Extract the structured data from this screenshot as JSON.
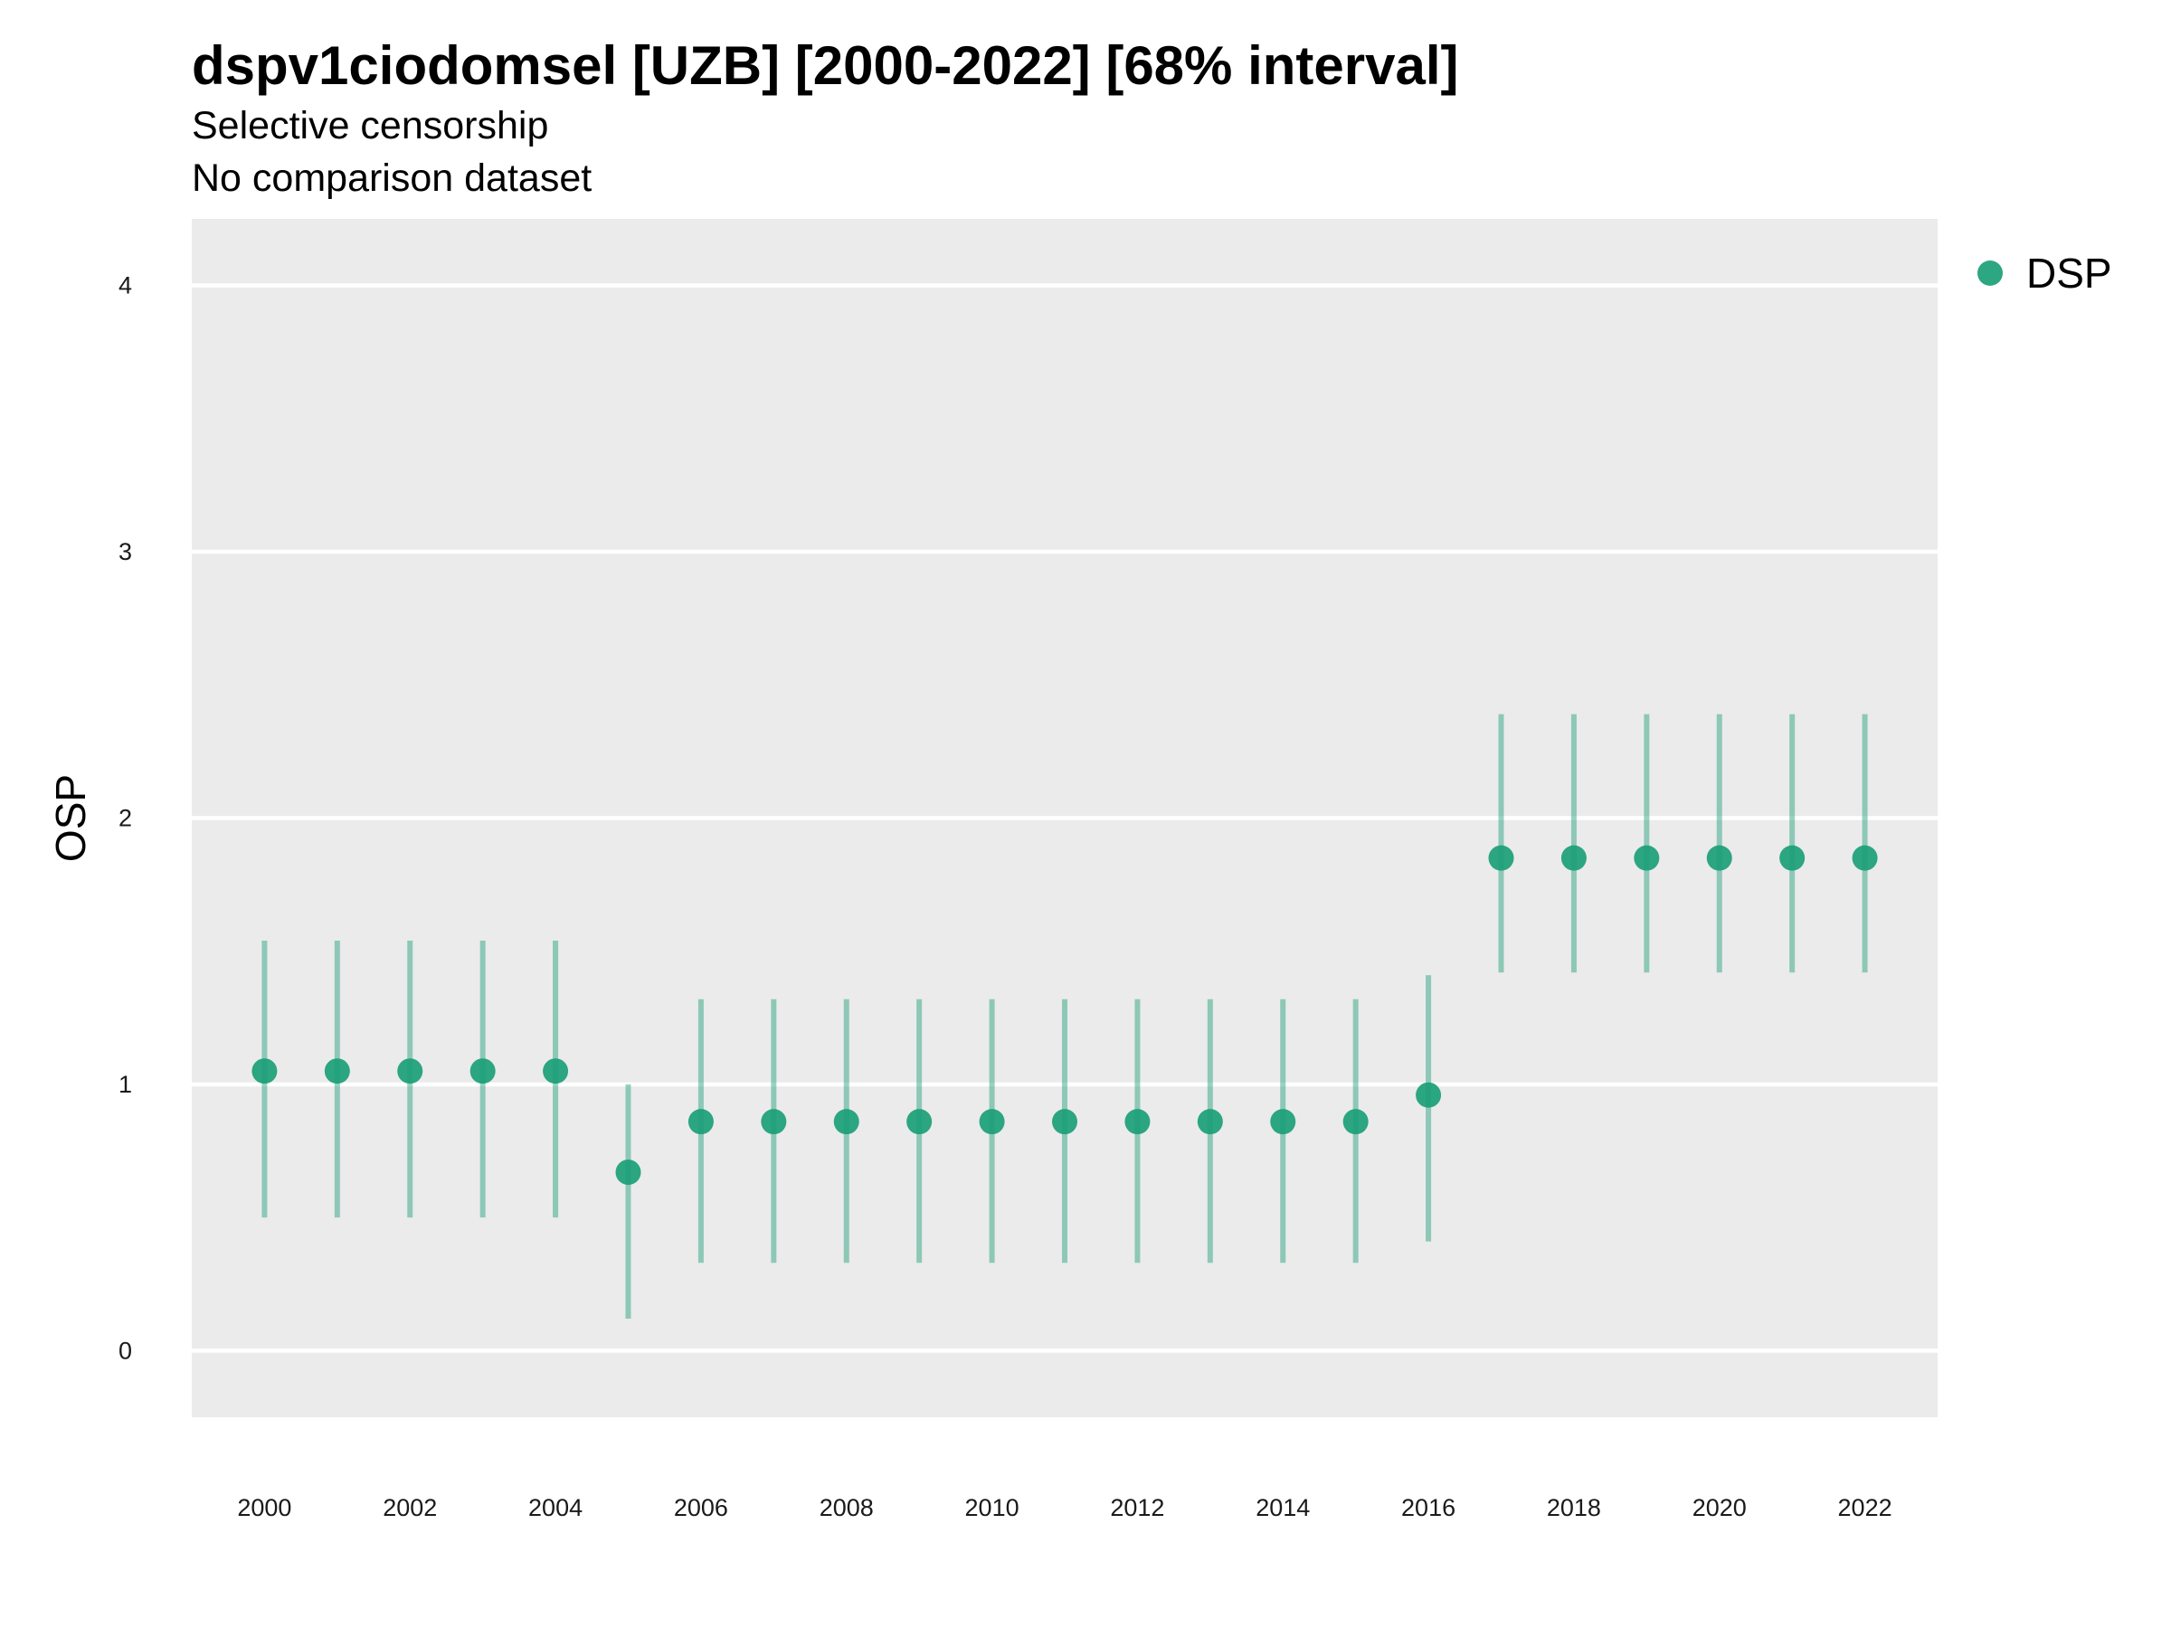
{
  "chart_data": {
    "type": "scatter",
    "title": "dspv1ciodomsel [UZB] [2000-2022] [68% interval]",
    "subtitle": "Selective censorship",
    "subtitle2": "No comparison dataset",
    "ylabel": "OSP",
    "xlabel": "",
    "ylim": [
      -0.25,
      4.25
    ],
    "yticks": [
      0,
      1,
      2,
      3,
      4
    ],
    "xlim": [
      1999,
      2023
    ],
    "xticks": [
      2000,
      2002,
      2004,
      2006,
      2008,
      2010,
      2012,
      2014,
      2016,
      2018,
      2020,
      2022
    ],
    "grid": true,
    "legend": "right",
    "color": "#1b9e77",
    "series": [
      {
        "name": "DSP",
        "x": [
          2000,
          2001,
          2002,
          2003,
          2004,
          2005,
          2006,
          2007,
          2008,
          2009,
          2010,
          2011,
          2012,
          2013,
          2014,
          2015,
          2016,
          2017,
          2018,
          2019,
          2020,
          2021,
          2022
        ],
        "y": [
          1.05,
          1.05,
          1.05,
          1.05,
          1.05,
          0.67,
          0.86,
          0.86,
          0.86,
          0.86,
          0.86,
          0.86,
          0.86,
          0.86,
          0.86,
          0.86,
          0.96,
          1.85,
          1.85,
          1.85,
          1.85,
          1.85,
          1.85
        ],
        "lower": [
          0.5,
          0.5,
          0.5,
          0.5,
          0.5,
          0.12,
          0.33,
          0.33,
          0.33,
          0.33,
          0.33,
          0.33,
          0.33,
          0.33,
          0.33,
          0.33,
          0.41,
          1.42,
          1.42,
          1.42,
          1.42,
          1.42,
          1.42
        ],
        "upper": [
          1.54,
          1.54,
          1.54,
          1.54,
          1.54,
          1.0,
          1.32,
          1.32,
          1.32,
          1.32,
          1.32,
          1.32,
          1.32,
          1.32,
          1.32,
          1.32,
          1.41,
          2.39,
          2.39,
          2.39,
          2.39,
          2.39,
          2.39
        ]
      }
    ]
  }
}
